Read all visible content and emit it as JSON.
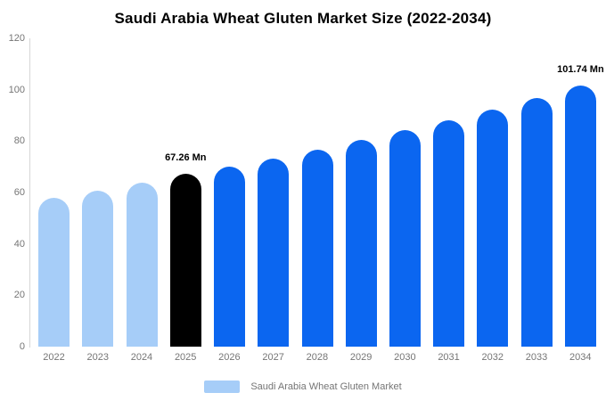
{
  "chart_data": {
    "type": "bar",
    "title": "Saudi Arabia Wheat Gluten Market Size (2022-2034)",
    "unit": "Mn",
    "xlabel": "",
    "ylabel": "",
    "ylim": [
      0,
      120
    ],
    "yticks": [
      0,
      20,
      40,
      60,
      80,
      100,
      120
    ],
    "grid": false,
    "legend_position": "bottom-center",
    "legend": {
      "label": "Saudi Arabia Wheat Gluten Market",
      "swatch_color": "#A6CDF8"
    },
    "colors": {
      "historical": "#A6CDF8",
      "base_year": "#000000",
      "forecast": "#0B66F0"
    },
    "categories": [
      "2022",
      "2023",
      "2024",
      "2025",
      "2026",
      "2027",
      "2028",
      "2029",
      "2030",
      "2031",
      "2032",
      "2033",
      "2034"
    ],
    "bars": [
      {
        "year": "2022",
        "value": 57.8,
        "color": "#A6CDF8",
        "label": ""
      },
      {
        "year": "2023",
        "value": 60.7,
        "color": "#A6CDF8",
        "label": ""
      },
      {
        "year": "2024",
        "value": 63.9,
        "color": "#A6CDF8",
        "label": ""
      },
      {
        "year": "2025",
        "value": 67.26,
        "color": "#000000",
        "label": "67.26 Mn"
      },
      {
        "year": "2026",
        "value": 69.9,
        "color": "#0B66F0",
        "label": ""
      },
      {
        "year": "2027",
        "value": 73.3,
        "color": "#0B66F0",
        "label": ""
      },
      {
        "year": "2028",
        "value": 76.8,
        "color": "#0B66F0",
        "label": ""
      },
      {
        "year": "2029",
        "value": 80.4,
        "color": "#0B66F0",
        "label": ""
      },
      {
        "year": "2030",
        "value": 84.2,
        "color": "#0B66F0",
        "label": ""
      },
      {
        "year": "2031",
        "value": 88.2,
        "color": "#0B66F0",
        "label": ""
      },
      {
        "year": "2032",
        "value": 92.4,
        "color": "#0B66F0",
        "label": ""
      },
      {
        "year": "2033",
        "value": 96.8,
        "color": "#0B66F0",
        "label": ""
      },
      {
        "year": "2034",
        "value": 101.74,
        "color": "#0B66F0",
        "label": "101.74 Mn"
      }
    ]
  }
}
